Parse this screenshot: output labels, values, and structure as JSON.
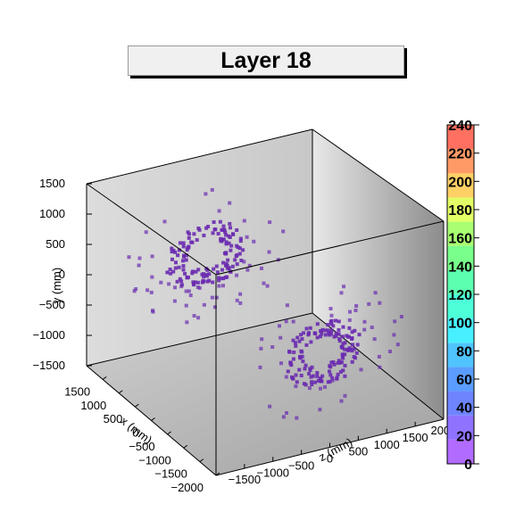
{
  "title": "Layer 18",
  "chart_data": {
    "type": "scatter",
    "title": "Layer 18",
    "dims": 3,
    "axes": {
      "x": {
        "label": "x (mm)",
        "range": [
          -2000,
          2000
        ],
        "ticks": [
          "−2000",
          "−1500",
          "−1000",
          "−500",
          "0",
          "500",
          "1000",
          "1500"
        ]
      },
      "y": {
        "label": "y (mm)",
        "range": [
          -1500,
          1500
        ],
        "ticks": [
          "−1500",
          "−1000",
          "−500",
          "0",
          "500",
          "1000",
          "1500"
        ]
      },
      "z": {
        "label": "z (mm)",
        "range": [
          -2000,
          2000
        ],
        "ticks": [
          "−1500",
          "−1000",
          "−500",
          "0",
          "500",
          "1000",
          "1500",
          "2000"
        ]
      }
    },
    "color_scale": {
      "range": [
        0,
        240
      ],
      "labels": [
        "0",
        "20",
        "40",
        "60",
        "80",
        "100",
        "120",
        "140",
        "160",
        "180",
        "200",
        "220",
        "240"
      ],
      "colors": [
        "#b26bff",
        "#8f72ff",
        "#6e84ff",
        "#5a9cff",
        "#4fc4ff",
        "#47f0ff",
        "#4dffd9",
        "#5cffb0",
        "#79ff8c",
        "#a8ff72",
        "#e2ff66",
        "#ffd066",
        "#ff9a66",
        "#ff7060"
      ]
    },
    "point_color": "#6a2bb0",
    "clusters": [
      {
        "center_z": -1800,
        "center_x": 0,
        "center_y": 0,
        "inner_radius": 260,
        "outer_radius": 1100,
        "values": "0-20"
      },
      {
        "center_z": 1800,
        "center_x": 0,
        "center_y": 0,
        "inner_radius": 260,
        "outer_radius": 1100,
        "values": "0-20"
      }
    ],
    "grid": false
  }
}
